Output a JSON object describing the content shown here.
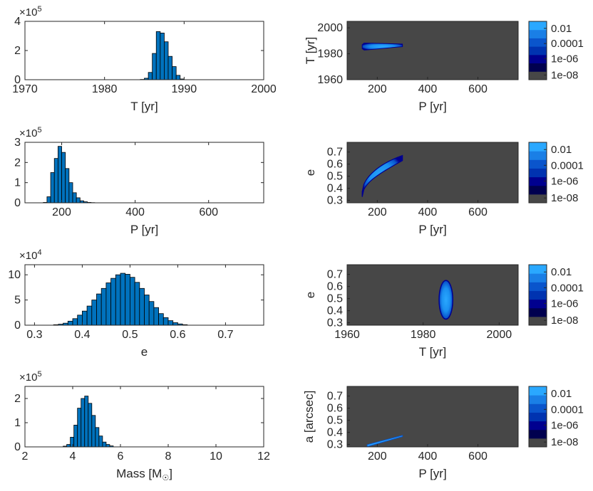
{
  "colors": {
    "bar": "#0072BD",
    "bar_edge": "#000000",
    "axis": "#262626",
    "map_background": "#474747",
    "colorbar": [
      "#474747",
      "#00004f",
      "#00008f",
      "#0033b0",
      "#0a55cc",
      "#1a7fe6",
      "#2aa8ff"
    ]
  },
  "chart_data": [
    {
      "type": "bar",
      "panel": "hist-T",
      "xlabel": "T [yr]",
      "ylabel": "",
      "exponent_base": "×10",
      "exponent_power": "5",
      "xlim": [
        1970,
        2000
      ],
      "ylim": [
        0,
        4
      ],
      "xticks": [
        1970,
        1980,
        1990,
        2000
      ],
      "yticks": [
        0,
        2,
        4
      ],
      "bin_start": 1984.5,
      "bin_width": 0.5,
      "values": [
        0.02,
        0.1,
        0.5,
        1.8,
        3.3,
        3.2,
        2.6,
        1.6,
        0.9,
        0.3,
        0.05
      ]
    },
    {
      "type": "bar",
      "panel": "hist-P",
      "xlabel": "P [yr]",
      "ylabel": "",
      "exponent_base": "×10",
      "exponent_power": "5",
      "xlim": [
        100,
        750
      ],
      "ylim": [
        0,
        3
      ],
      "xticks": [
        200,
        400,
        600
      ],
      "yticks": [
        0,
        1,
        2,
        3
      ],
      "bin_start": 150,
      "bin_width": 10,
      "values": [
        0.02,
        0.3,
        1.5,
        2.2,
        2.8,
        2.5,
        1.7,
        1.0,
        0.5,
        0.25,
        0.1,
        0.05,
        0.02,
        0.01
      ]
    },
    {
      "type": "bar",
      "panel": "hist-e",
      "xlabel": "e",
      "ylabel": "",
      "exponent_base": "×10",
      "exponent_power": "4",
      "xlim": [
        0.28,
        0.78
      ],
      "ylim": [
        0,
        12
      ],
      "xticks": [
        0.3,
        0.4,
        0.5,
        0.6,
        0.7
      ],
      "yticks": [
        0,
        5,
        10
      ],
      "bin_start": 0.34,
      "bin_width": 0.01,
      "values": [
        0.1,
        0.2,
        0.4,
        0.8,
        1.3,
        2.0,
        2.8,
        3.8,
        5.0,
        6.2,
        7.3,
        8.4,
        9.3,
        10.0,
        10.3,
        10.1,
        9.5,
        8.5,
        7.3,
        6.0,
        4.7,
        3.5,
        2.3,
        1.5,
        0.9,
        0.5,
        0.25,
        0.1
      ]
    },
    {
      "type": "bar",
      "panel": "hist-Mass",
      "xlabel": "Mass [M",
      "xlabel_suffix": "]",
      "xlabel_sub": "☉",
      "ylabel": "",
      "exponent_base": "×10",
      "exponent_power": "5",
      "xlim": [
        2,
        12
      ],
      "ylim": [
        0,
        2.5
      ],
      "xticks": [
        2,
        4,
        6,
        8,
        10,
        12
      ],
      "yticks": [
        0,
        1,
        2
      ],
      "bin_start": 3.6,
      "bin_width": 0.15,
      "values": [
        0.03,
        0.1,
        0.4,
        0.9,
        1.6,
        2.0,
        2.1,
        1.8,
        1.3,
        0.8,
        0.45,
        0.2,
        0.1,
        0.04
      ]
    },
    {
      "type": "heatmap",
      "panel": "map-P-T",
      "xlabel": "P [yr]",
      "ylabel": "T [yr]",
      "xlim": [
        80,
        760
      ],
      "ylim": [
        1960,
        2005
      ],
      "xticks": [
        200,
        400,
        600
      ],
      "yticks": [
        1960,
        1980,
        2000
      ],
      "colorbar_ticks": [
        "0.01",
        "0.0001",
        "1e-06",
        "1e-08"
      ],
      "region": {
        "shape": "taper",
        "x": [
          140,
          300
        ],
        "y_center": [
          1985.5,
          1986.5
        ],
        "y_halfwidth": [
          2.8,
          1.0
        ]
      }
    },
    {
      "type": "heatmap",
      "panel": "map-P-e",
      "xlabel": "P [yr]",
      "ylabel": "e",
      "xlim": [
        80,
        760
      ],
      "ylim": [
        0.28,
        0.78
      ],
      "xticks": [
        200,
        400,
        600
      ],
      "yticks": [
        0.3,
        0.4,
        0.5,
        0.6,
        0.7
      ],
      "colorbar_ticks": [
        "0.01",
        "0.0001",
        "1e-06",
        "1e-08"
      ],
      "region": {
        "shape": "band",
        "x": [
          140,
          300
        ],
        "y_low": [
          0.33,
          0.63
        ],
        "y_high": [
          0.37,
          0.67
        ],
        "curve": [
          0.5,
          0.56
        ]
      }
    },
    {
      "type": "heatmap",
      "panel": "map-T-e",
      "xlabel": "T [yr]",
      "ylabel": "e",
      "xlim": [
        1960,
        2005
      ],
      "ylim": [
        0.28,
        0.78
      ],
      "xticks": [
        1960,
        1980,
        2000
      ],
      "yticks": [
        0.3,
        0.4,
        0.5,
        0.6,
        0.7
      ],
      "colorbar_ticks": [
        "0.01",
        "0.0001",
        "1e-06",
        "1e-08"
      ],
      "region": {
        "shape": "ellipse",
        "cx": 1986,
        "cy": 0.49,
        "rx": 1.8,
        "ry": 0.16
      }
    },
    {
      "type": "heatmap",
      "panel": "map-P-a",
      "xlabel": "P [yr]",
      "ylabel": "a [arcsec]",
      "xlim": [
        80,
        760
      ],
      "ylim": [
        0.28,
        0.78
      ],
      "xticks": [
        200,
        400,
        600
      ],
      "yticks": [
        0.3,
        0.4,
        0.5,
        0.6,
        0.7
      ],
      "colorbar_ticks": [
        "0.01",
        "0.0001",
        "1e-06",
        "1e-08"
      ],
      "region": {
        "shape": "line",
        "x": [
          160,
          300
        ],
        "y": [
          0.29,
          0.37
        ],
        "halfwidth": 0.008
      }
    }
  ]
}
